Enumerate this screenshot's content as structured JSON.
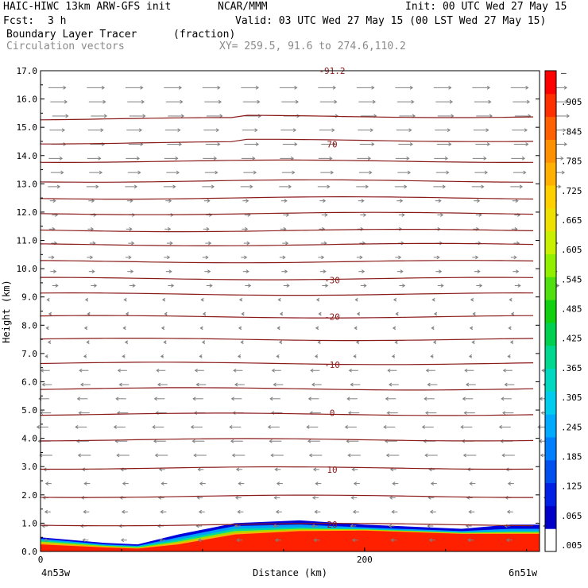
{
  "header": {
    "model": "HAIC-HIWC 13km ARW-GFS init",
    "org": "NCAR/MMM",
    "init": "Init: 00 UTC Wed 27 May 15",
    "fcst_label": "Fcst:",
    "fcst_value": "3 h",
    "valid": "Valid: 03 UTC Wed 27 May 15 (00 LST Wed 27 May 15)",
    "field": "Boundary Layer Tracer",
    "field_units": "(fraction)",
    "vectors": "Circulation vectors",
    "xy": "XY= 259.5, 91.6 to 274.6,110.2"
  },
  "colors": {
    "contour": "#8b1a1a",
    "vector": "#808080",
    "colorbar": [
      "#ffffff",
      "#0000c8",
      "#0020e6",
      "#0050f0",
      "#0080ff",
      "#00aaff",
      "#00ccee",
      "#00d8c0",
      "#00d890",
      "#00d050",
      "#10d010",
      "#50e010",
      "#90f000",
      "#c8f000",
      "#eee000",
      "#ffd000",
      "#ffb000",
      "#ff9000",
      "#ff6000",
      "#ff3000",
      "#ff0000"
    ]
  },
  "chart_data": {
    "type": "heatmap",
    "xlabel": "Distance (km)",
    "ylabel": "Height (km)",
    "x_ticks": [
      "0",
      "200"
    ],
    "x_endpoints": [
      "4n53w",
      "6n51w"
    ],
    "xlim": [
      0,
      308
    ],
    "ylim": [
      0,
      17
    ],
    "y_ticks": [
      "0.0",
      "1.0",
      "2.0",
      "3.0",
      "4.0",
      "5.0",
      "6.0",
      "7.0",
      "8.0",
      "9.0",
      "10.0",
      "11.0",
      "12.0",
      "13.0",
      "14.0",
      "15.0",
      "16.0",
      "17.0"
    ],
    "colorbar_labels": [
      ".005",
      ".065",
      ".125",
      ".185",
      ".245",
      ".305",
      ".365",
      ".425",
      ".485",
      ".545",
      ".605",
      ".665",
      ".725",
      ".785",
      ".845",
      ".905",
      "–"
    ],
    "contour_labels": [
      {
        "text": "70",
        "height_km": 14.4
      },
      {
        "text": "-30",
        "height_km": 9.6
      },
      {
        "text": "-20",
        "height_km": 8.3
      },
      {
        "text": "-10",
        "height_km": 6.6
      },
      {
        "text": "0",
        "height_km": 4.9
      },
      {
        "text": "10",
        "height_km": 2.9
      },
      {
        "text": "20",
        "height_km": 0.95
      },
      {
        "text": "-91.2",
        "height_km": 17.0
      }
    ],
    "contour_levels_km": [
      0.95,
      1.95,
      2.95,
      3.95,
      4.85,
      5.75,
      6.65,
      7.5,
      8.3,
      9.1,
      9.65,
      10.25,
      10.85,
      11.35,
      11.95,
      12.5,
      13.1,
      13.8,
      14.45,
      15.3
    ]
  }
}
